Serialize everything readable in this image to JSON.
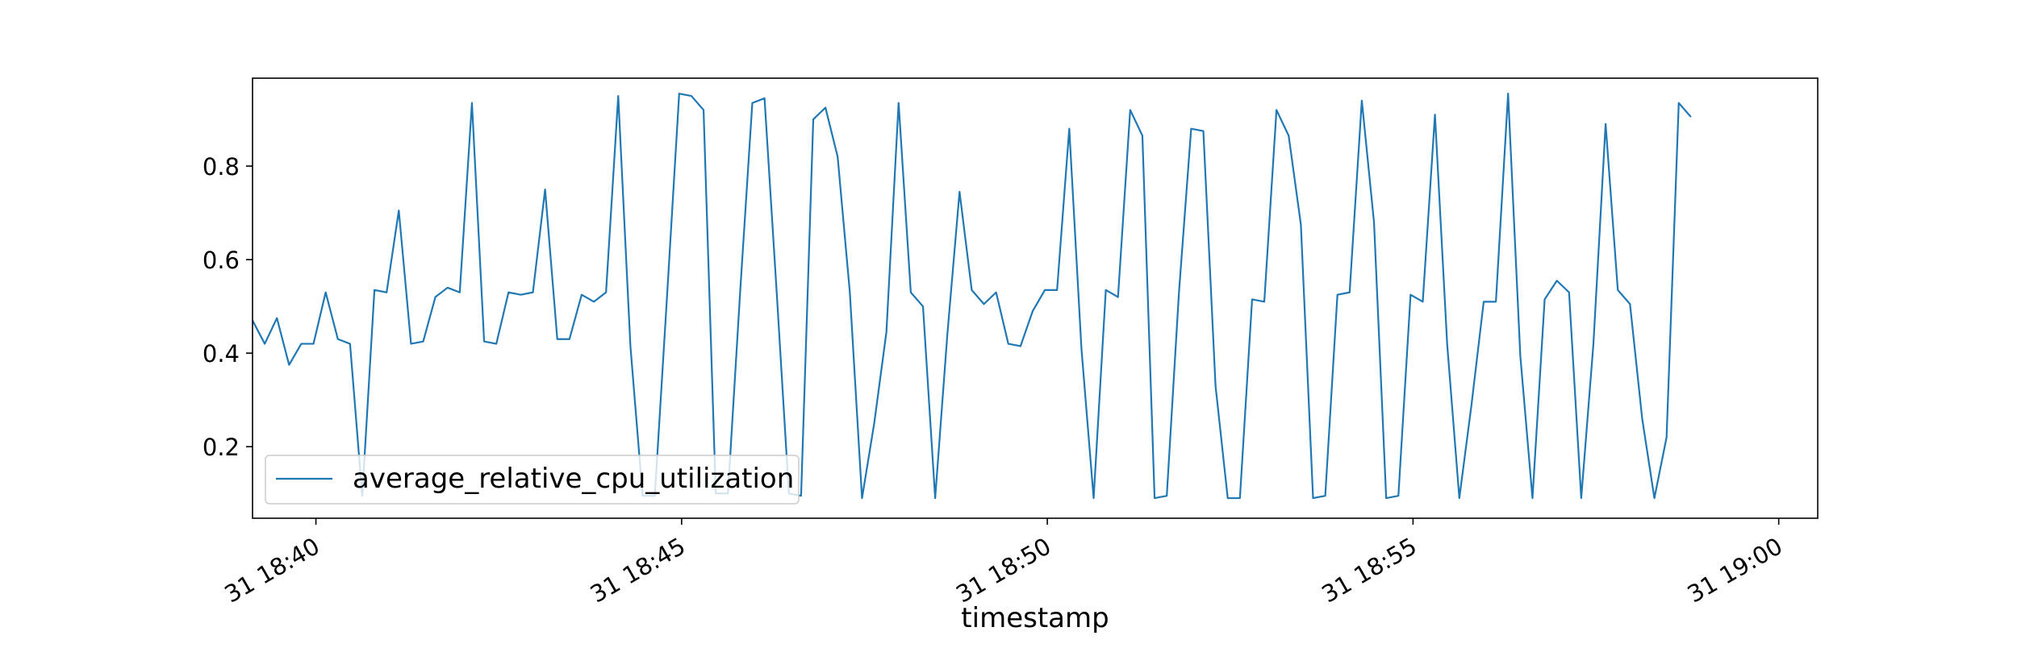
{
  "chart_data": {
    "type": "line",
    "title": "",
    "xlabel": "timestamp",
    "ylabel": "",
    "x_start": "18:39:08",
    "x_step_seconds": 10,
    "x_end": "19:00:32",
    "xlim": [
      "18:39:08",
      "19:00:32"
    ],
    "ylim": [
      0.047,
      0.988
    ],
    "x_ticks": [
      "18:40",
      "18:45",
      "18:50",
      "18:55",
      "19:00"
    ],
    "x_tick_labels": [
      "31 18:40",
      "31 18:45",
      "31 18:50",
      "31 18:55",
      "31 19:00"
    ],
    "y_ticks": [
      0.2,
      0.4,
      0.6,
      0.8
    ],
    "y_tick_labels": [
      "0.2",
      "0.4",
      "0.6",
      "0.8"
    ],
    "grid": false,
    "legend_position": "lower-left",
    "series": [
      {
        "name": "average_relative_cpu_utilization",
        "color": "#1f77b4",
        "values": [
          0.47,
          0.42,
          0.475,
          0.375,
          0.42,
          0.42,
          0.53,
          0.43,
          0.42,
          0.095,
          0.535,
          0.53,
          0.705,
          0.42,
          0.425,
          0.52,
          0.54,
          0.53,
          0.935,
          0.425,
          0.42,
          0.53,
          0.525,
          0.53,
          0.75,
          0.43,
          0.43,
          0.525,
          0.51,
          0.53,
          0.95,
          0.415,
          0.095,
          0.095,
          0.52,
          0.955,
          0.95,
          0.92,
          0.1,
          0.1,
          0.53,
          0.935,
          0.945,
          0.53,
          0.1,
          0.095,
          0.9,
          0.925,
          0.82,
          0.53,
          0.09,
          0.25,
          0.445,
          0.935,
          0.53,
          0.5,
          0.09,
          0.44,
          0.745,
          0.535,
          0.505,
          0.53,
          0.42,
          0.415,
          0.49,
          0.535,
          0.535,
          0.88,
          0.41,
          0.09,
          0.535,
          0.52,
          0.92,
          0.865,
          0.09,
          0.095,
          0.53,
          0.88,
          0.875,
          0.33,
          0.09,
          0.09,
          0.515,
          0.51,
          0.92,
          0.865,
          0.675,
          0.09,
          0.095,
          0.525,
          0.53,
          0.94,
          0.68,
          0.09,
          0.095,
          0.525,
          0.51,
          0.91,
          0.42,
          0.09,
          0.29,
          0.51,
          0.51,
          0.955,
          0.395,
          0.09,
          0.515,
          0.555,
          0.53,
          0.09,
          0.42,
          0.89,
          0.535,
          0.505,
          0.26,
          0.09,
          0.22,
          0.935,
          0.905
        ]
      }
    ]
  }
}
